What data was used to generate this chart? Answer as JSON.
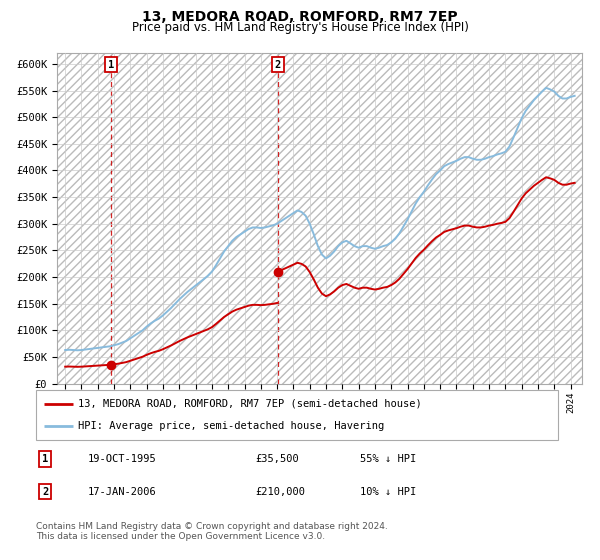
{
  "title": "13, MEDORA ROAD, ROMFORD, RM7 7EP",
  "subtitle": "Price paid vs. HM Land Registry's House Price Index (HPI)",
  "ylabel_ticks": [
    "£0",
    "£50K",
    "£100K",
    "£150K",
    "£200K",
    "£250K",
    "£300K",
    "£350K",
    "£400K",
    "£450K",
    "£500K",
    "£550K",
    "£600K"
  ],
  "ytick_values": [
    0,
    50000,
    100000,
    150000,
    200000,
    250000,
    300000,
    350000,
    400000,
    450000,
    500000,
    550000,
    600000
  ],
  "ylim": [
    0,
    620000
  ],
  "xlim_start": 1992.5,
  "xlim_end": 2024.7,
  "transaction1": {
    "date": "19-OCT-1995",
    "price": 35500,
    "label": "1",
    "year": 1995.8
  },
  "transaction2": {
    "date": "17-JAN-2006",
    "price": 210000,
    "label": "2",
    "year": 2006.05
  },
  "legend_line1": "13, MEDORA ROAD, ROMFORD, RM7 7EP (semi-detached house)",
  "legend_line2": "HPI: Average price, semi-detached house, Havering",
  "footer": "Contains HM Land Registry data © Crown copyright and database right 2024.\nThis data is licensed under the Open Government Licence v3.0.",
  "table_row1": [
    "1",
    "19-OCT-1995",
    "£35,500",
    "55% ↓ HPI"
  ],
  "table_row2": [
    "2",
    "17-JAN-2006",
    "£210,000",
    "10% ↓ HPI"
  ],
  "price_color": "#cc0000",
  "hpi_color": "#88bbdd",
  "grid_color": "#cccccc",
  "hpi_data_x": [
    1993.0,
    1993.25,
    1993.5,
    1993.75,
    1994.0,
    1994.25,
    1994.5,
    1994.75,
    1995.0,
    1995.25,
    1995.5,
    1995.75,
    1996.0,
    1996.25,
    1996.5,
    1996.75,
    1997.0,
    1997.25,
    1997.5,
    1997.75,
    1998.0,
    1998.25,
    1998.5,
    1998.75,
    1999.0,
    1999.25,
    1999.5,
    1999.75,
    2000.0,
    2000.25,
    2000.5,
    2000.75,
    2001.0,
    2001.25,
    2001.5,
    2001.75,
    2002.0,
    2002.25,
    2002.5,
    2002.75,
    2003.0,
    2003.25,
    2003.5,
    2003.75,
    2004.0,
    2004.25,
    2004.5,
    2004.75,
    2005.0,
    2005.25,
    2005.5,
    2005.75,
    2006.0,
    2006.25,
    2006.5,
    2006.75,
    2007.0,
    2007.25,
    2007.5,
    2007.75,
    2008.0,
    2008.25,
    2008.5,
    2008.75,
    2009.0,
    2009.25,
    2009.5,
    2009.75,
    2010.0,
    2010.25,
    2010.5,
    2010.75,
    2011.0,
    2011.25,
    2011.5,
    2011.75,
    2012.0,
    2012.25,
    2012.5,
    2012.75,
    2013.0,
    2013.25,
    2013.5,
    2013.75,
    2014.0,
    2014.25,
    2014.5,
    2014.75,
    2015.0,
    2015.25,
    2015.5,
    2015.75,
    2016.0,
    2016.25,
    2016.5,
    2016.75,
    2017.0,
    2017.25,
    2017.5,
    2017.75,
    2018.0,
    2018.25,
    2018.5,
    2018.75,
    2019.0,
    2019.25,
    2019.5,
    2019.75,
    2020.0,
    2020.25,
    2020.5,
    2020.75,
    2021.0,
    2021.25,
    2021.5,
    2021.75,
    2022.0,
    2022.25,
    2022.5,
    2022.75,
    2023.0,
    2023.25,
    2023.5,
    2023.75,
    2024.0,
    2024.25
  ],
  "hpi_data_y": [
    63000,
    63500,
    63000,
    62500,
    63000,
    64000,
    65000,
    66000,
    67000,
    68000,
    69000,
    70000,
    72000,
    74000,
    77000,
    80000,
    85000,
    90000,
    95000,
    100000,
    107000,
    113000,
    118000,
    122000,
    128000,
    135000,
    142000,
    150000,
    158000,
    165000,
    172000,
    178000,
    184000,
    190000,
    196000,
    202000,
    210000,
    222000,
    235000,
    248000,
    258000,
    268000,
    275000,
    280000,
    285000,
    290000,
    293000,
    293000,
    292000,
    293000,
    295000,
    297000,
    300000,
    305000,
    310000,
    315000,
    320000,
    325000,
    322000,
    315000,
    300000,
    280000,
    258000,
    242000,
    235000,
    240000,
    248000,
    258000,
    265000,
    268000,
    263000,
    258000,
    255000,
    258000,
    258000,
    255000,
    253000,
    255000,
    258000,
    260000,
    265000,
    272000,
    282000,
    295000,
    308000,
    323000,
    338000,
    350000,
    360000,
    372000,
    383000,
    393000,
    400000,
    408000,
    412000,
    415000,
    418000,
    422000,
    425000,
    425000,
    422000,
    420000,
    420000,
    422000,
    425000,
    427000,
    430000,
    432000,
    435000,
    445000,
    462000,
    480000,
    498000,
    512000,
    522000,
    532000,
    540000,
    548000,
    555000,
    552000,
    548000,
    540000,
    535000,
    535000,
    538000,
    540000
  ]
}
